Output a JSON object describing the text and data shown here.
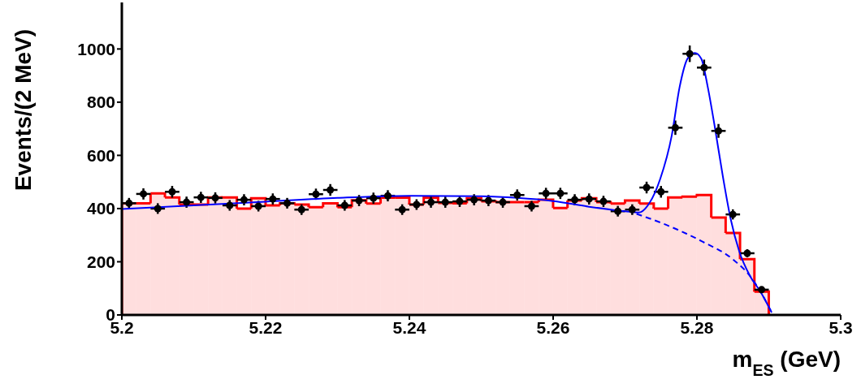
{
  "chart_data": {
    "type": "histogram",
    "color": "#ff0000",
    "bins": [
      5.2,
      5.202,
      5.204,
      5.206,
      5.208,
      5.21,
      5.212,
      5.214,
      5.216,
      5.218,
      5.22,
      5.222,
      5.224,
      5.226,
      5.228,
      5.23,
      5.232,
      5.234,
      5.236,
      5.238,
      5.24,
      5.242,
      5.244,
      5.246,
      5.248,
      5.25,
      5.252,
      5.254,
      5.256,
      5.258,
      5.26,
      5.262,
      5.264,
      5.266,
      5.268,
      5.27,
      5.272,
      5.274,
      5.276,
      5.278,
      5.28,
      5.282,
      5.284,
      5.286,
      5.288,
      5.29
    ],
    "values": [
      420,
      420,
      457,
      442,
      415,
      415,
      442,
      442,
      400,
      439,
      412,
      420,
      415,
      405,
      420,
      405,
      431,
      419,
      441,
      441,
      415,
      441,
      421,
      420,
      439,
      427,
      424,
      424,
      424,
      433,
      402,
      430,
      439,
      424,
      419,
      430,
      419,
      400,
      442,
      445,
      451,
      366,
      308,
      210,
      88
    ],
    "xlabel": "m$_{ES}$ (GeV)",
    "ylabel": "Events/(2 MeV)",
    "xlim": [
      5.2,
      5.3
    ],
    "ylim": [
      0,
      1175
    ],
    "xticks": [
      5.2,
      5.22,
      5.24,
      5.26,
      5.28,
      5.3
    ],
    "yticks": [
      0,
      200,
      400,
      600,
      800,
      1000
    ],
    "grid": false,
    "legend": false,
    "series": [
      {
        "type": "scatter",
        "color": "#000000",
        "marker": "circle",
        "x": [
          5.201,
          5.203,
          5.205,
          5.207,
          5.209,
          5.211,
          5.213,
          5.215,
          5.217,
          5.219,
          5.221,
          5.223,
          5.225,
          5.227,
          5.229,
          5.231,
          5.233,
          5.235,
          5.237,
          5.239,
          5.241,
          5.243,
          5.245,
          5.247,
          5.249,
          5.251,
          5.253,
          5.255,
          5.257,
          5.259,
          5.261,
          5.263,
          5.265,
          5.267,
          5.269,
          5.271,
          5.273,
          5.275,
          5.277,
          5.279,
          5.281,
          5.283,
          5.285,
          5.287,
          5.289
        ],
        "values": [
          420,
          455,
          400,
          463,
          424,
          442,
          440,
          412,
          433,
          409,
          436,
          420,
          396,
          454,
          470,
          412,
          430,
          439,
          448,
          396,
          415,
          424,
          424,
          427,
          433,
          430,
          424,
          451,
          409,
          457,
          457,
          433,
          436,
          427,
          390,
          396,
          479,
          463,
          704,
          982,
          930,
          692,
          378,
          232,
          95
        ],
        "errors": [
          20,
          21,
          20,
          22,
          21,
          21,
          21,
          20,
          21,
          20,
          21,
          20,
          20,
          21,
          22,
          20,
          21,
          21,
          21,
          20,
          20,
          21,
          21,
          21,
          21,
          21,
          21,
          21,
          20,
          21,
          21,
          21,
          21,
          21,
          20,
          20,
          22,
          22,
          27,
          31,
          30,
          26,
          19,
          15,
          10
        ],
        "xerrors": [
          0.001,
          0.001,
          0.001,
          0.001,
          0.001,
          0.001,
          0.001,
          0.001,
          0.001,
          0.001,
          0.001,
          0.001,
          0.001,
          0.001,
          0.001,
          0.001,
          0.001,
          0.001,
          0.001,
          0.001,
          0.001,
          0.001,
          0.001,
          0.001,
          0.001,
          0.001,
          0.001,
          0.001,
          0.001,
          0.001,
          0.001,
          0.001,
          0.001,
          0.001,
          0.001,
          0.001,
          0.001,
          0.001,
          0.001,
          0.001,
          0.001,
          0.001,
          0.001,
          0.001,
          0.001
        ]
      },
      {
        "type": "line",
        "color": "#0000ff",
        "line_style": "solid",
        "x": [
          5.2,
          5.21,
          5.22,
          5.23,
          5.24,
          5.25,
          5.255,
          5.26,
          5.265,
          5.27,
          5.2719,
          5.2734,
          5.2749,
          5.2765,
          5.2776,
          5.2787,
          5.2797,
          5.2806,
          5.2815,
          5.2825,
          5.2836,
          5.2847,
          5.2859,
          5.2874,
          5.2889,
          5.2904
        ],
        "values": [
          398,
          412,
          426,
          440,
          448,
          446,
          440,
          428,
          407,
          390,
          385,
          421,
          512,
          675,
          858,
          964,
          985,
          964,
          858,
          705,
          522,
          360,
          238,
          146,
          85,
          9
        ]
      },
      {
        "type": "line",
        "color": "#0000ff",
        "line_style": "dashed",
        "x": [
          5.2716,
          5.2757,
          5.2806,
          5.2851,
          5.2874,
          5.2889,
          5.2904
        ],
        "values": [
          380,
          339,
          278,
          207,
          146,
          85,
          9
        ]
      }
    ]
  }
}
